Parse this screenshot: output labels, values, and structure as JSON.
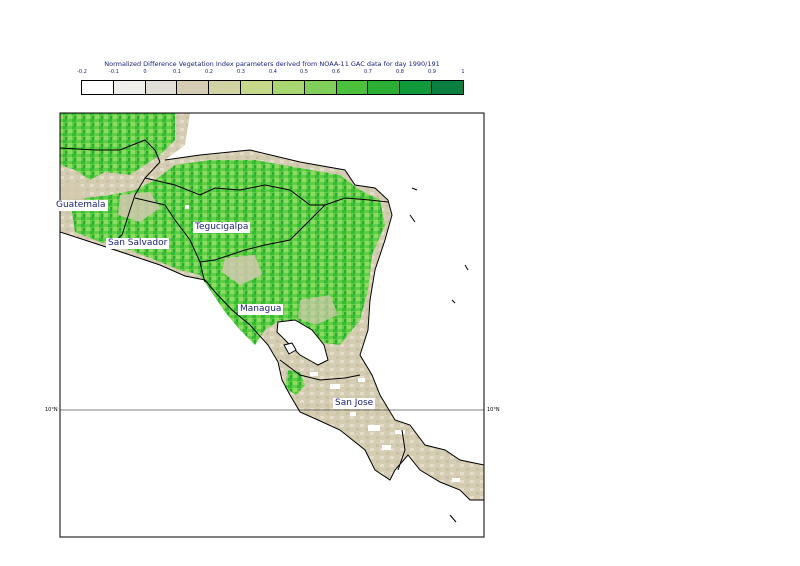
{
  "legend": {
    "title": "Normalized Difference Vegetation Index parameters derived from NOAA-11 GAC data for day 1990/191",
    "ticks": [
      "-0.2",
      "-0.1",
      "0",
      "0.1",
      "0.2",
      "0.3",
      "0.4",
      "0.5",
      "0.6",
      "0.7",
      "0.8",
      "0.9",
      "1"
    ],
    "colors": [
      "#ffffff",
      "#efefec",
      "#e2dfd8",
      "#d5ccb4",
      "#d2d3a3",
      "#c6d98b",
      "#a8d672",
      "#7fcf5a",
      "#4cc23c",
      "#2cae34",
      "#119a3c",
      "#0a7f40"
    ]
  },
  "map": {
    "cities": [
      "Guatemala",
      "San Salvador",
      "Tegucigalpa",
      "Managua",
      "San Jose"
    ],
    "latitude_label": "10°N"
  }
}
